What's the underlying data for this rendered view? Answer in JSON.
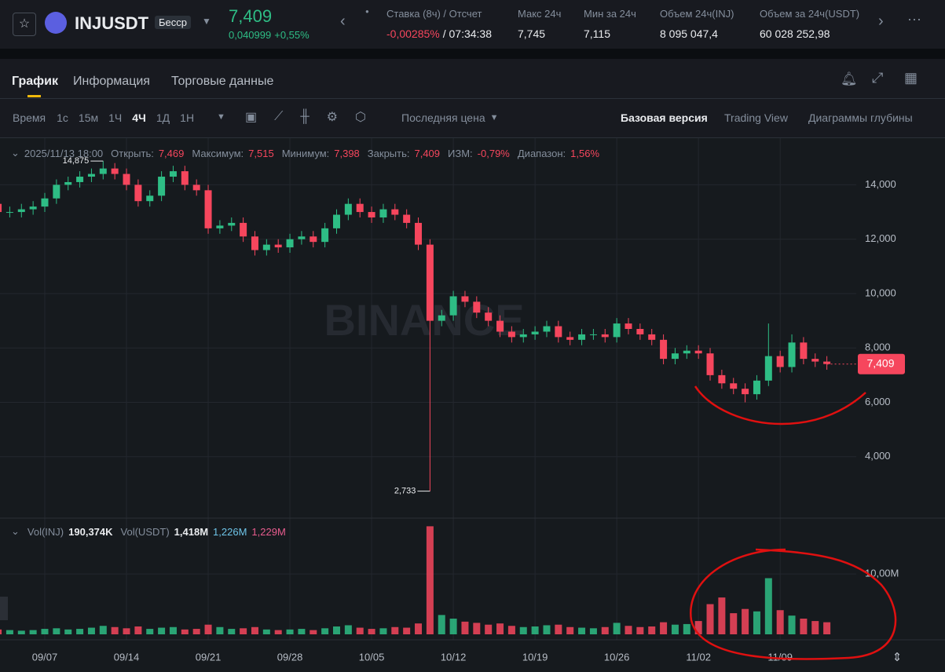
{
  "header": {
    "symbol": "INJUSDT",
    "contract": "Бесср",
    "price": "7,409",
    "change": "0,040999",
    "change_pct": "+0,55%",
    "stats": [
      {
        "label": "Ставка (8ч) / Отсчет",
        "value": "-0,00285%",
        "extra": "/ 07:34:38"
      },
      {
        "label": "Макс 24ч",
        "value": "7,745"
      },
      {
        "label": "Мин за 24ч",
        "value": "7,115"
      },
      {
        "label": "Объем 24ч(INJ)",
        "value": "8 095 047,4"
      },
      {
        "label": "Объем за 24ч(USDT)",
        "value": "60 028 252,98"
      }
    ]
  },
  "tabs": [
    "График",
    "Информация",
    "Торговые данные"
  ],
  "toolbar": {
    "intervals": [
      "Время",
      "1с",
      "15м",
      "1Ч",
      "4Ч",
      "1Д",
      "1Н"
    ],
    "price_source": "Последняя цена",
    "views": [
      "Базовая версия",
      "Trading View",
      "Диаграммы глубины"
    ]
  },
  "chart_data": [
    {
      "type": "candlestick",
      "watermark": "BINANCE",
      "legend": {
        "time": "2025/11/13 18:00",
        "items": [
          {
            "label": "Открыть:",
            "value": "7,469"
          },
          {
            "label": "Максимум:",
            "value": "7,515"
          },
          {
            "label": "Минимум:",
            "value": "7,398"
          },
          {
            "label": "Закрыть:",
            "value": "7,409"
          },
          {
            "label": "ИЗМ:",
            "value": "-0,79%"
          },
          {
            "label": "Диапазон:",
            "value": "1,56%"
          }
        ]
      },
      "categories": [
        null,
        null,
        null,
        null,
        "09/07",
        null,
        null,
        null,
        null,
        null,
        null,
        "09/14",
        null,
        null,
        null,
        null,
        null,
        null,
        "09/21",
        null,
        null,
        null,
        null,
        null,
        null,
        "09/28",
        null,
        null,
        null,
        null,
        null,
        null,
        "10/05",
        null,
        null,
        null,
        null,
        null,
        null,
        "10/12",
        null,
        null,
        null,
        null,
        null,
        null,
        "10/19",
        null,
        null,
        null,
        null,
        null,
        null,
        "10/26",
        null,
        null,
        null,
        null,
        null,
        null,
        "11/02",
        null,
        null,
        null,
        null,
        null,
        null,
        "11/09",
        null,
        null,
        null,
        null
      ],
      "open": [
        13.3,
        13.0,
        13.0,
        13.1,
        13.2,
        13.5,
        14.0,
        14.1,
        14.3,
        14.4,
        14.6,
        14.4,
        14.0,
        13.4,
        13.6,
        14.3,
        14.5,
        14.0,
        13.8,
        12.4,
        12.5,
        12.6,
        12.1,
        11.6,
        11.8,
        11.7,
        12.0,
        12.1,
        11.9,
        12.4,
        12.9,
        13.3,
        13.0,
        12.8,
        13.1,
        12.9,
        12.6,
        11.8,
        9.0,
        9.2,
        9.9,
        9.7,
        9.3,
        9.0,
        8.6,
        8.4,
        8.5,
        8.6,
        8.8,
        8.4,
        8.3,
        8.5,
        8.5,
        8.4,
        8.9,
        8.7,
        8.5,
        8.3,
        7.6,
        7.8,
        7.9,
        7.8,
        7.0,
        6.7,
        6.5,
        6.3,
        6.8,
        7.7,
        7.3,
        8.2,
        7.6,
        7.5
      ],
      "high": [
        13.5,
        13.2,
        13.3,
        13.4,
        13.7,
        14.2,
        14.3,
        14.5,
        14.6,
        14.875,
        14.8,
        14.6,
        14.2,
        13.8,
        14.5,
        14.7,
        14.7,
        14.2,
        14.0,
        12.7,
        12.8,
        12.8,
        12.3,
        12.0,
        12.0,
        12.2,
        12.3,
        12.3,
        12.6,
        13.1,
        13.5,
        13.5,
        13.2,
        13.3,
        13.3,
        13.1,
        12.8,
        12.0,
        9.4,
        10.1,
        10.1,
        9.9,
        9.5,
        9.2,
        8.8,
        8.7,
        8.8,
        9.0,
        9.0,
        8.6,
        8.7,
        8.7,
        8.7,
        9.1,
        9.1,
        8.9,
        8.7,
        8.5,
        8.0,
        8.1,
        8.1,
        8.0,
        7.2,
        6.9,
        6.7,
        7.0,
        8.9,
        7.9,
        8.5,
        8.4,
        7.8,
        7.7
      ],
      "low": [
        12.8,
        12.8,
        12.8,
        12.9,
        13.0,
        13.3,
        13.8,
        13.9,
        14.1,
        14.2,
        14.2,
        13.8,
        13.2,
        13.2,
        13.4,
        14.1,
        13.8,
        13.6,
        12.2,
        12.2,
        12.3,
        11.9,
        11.4,
        11.4,
        11.5,
        11.5,
        11.8,
        11.7,
        11.7,
        12.2,
        12.7,
        12.8,
        12.6,
        12.6,
        12.7,
        12.4,
        11.6,
        2.733,
        8.8,
        9.0,
        9.5,
        9.1,
        8.8,
        8.4,
        8.2,
        8.2,
        8.3,
        8.4,
        8.2,
        8.1,
        8.1,
        8.3,
        8.2,
        8.2,
        8.5,
        8.3,
        8.1,
        7.4,
        7.4,
        7.6,
        7.6,
        6.8,
        6.5,
        6.3,
        6.0,
        6.1,
        6.6,
        7.1,
        7.1,
        7.4,
        7.3,
        7.2
      ],
      "close": [
        13.0,
        13.0,
        13.1,
        13.2,
        13.5,
        14.0,
        14.1,
        14.3,
        14.4,
        14.6,
        14.4,
        14.0,
        13.4,
        13.6,
        14.3,
        14.5,
        14.0,
        13.8,
        12.4,
        12.5,
        12.6,
        12.1,
        11.6,
        11.8,
        11.7,
        12.0,
        12.1,
        11.9,
        12.4,
        12.9,
        13.3,
        13.0,
        12.8,
        13.1,
        12.9,
        12.6,
        11.8,
        9.0,
        9.2,
        9.9,
        9.7,
        9.3,
        9.0,
        8.6,
        8.4,
        8.5,
        8.6,
        8.8,
        8.4,
        8.3,
        8.5,
        8.5,
        8.4,
        8.9,
        8.7,
        8.5,
        8.3,
        7.6,
        7.8,
        7.9,
        7.8,
        7.0,
        6.7,
        6.5,
        6.3,
        6.8,
        7.7,
        7.3,
        8.2,
        7.6,
        7.5,
        7.409
      ],
      "annotations": [
        {
          "value": 14.875,
          "label": "14,875"
        },
        {
          "value": 2.733,
          "label": "2,733"
        }
      ],
      "last_price": {
        "value": 7.409,
        "label": "7,409"
      },
      "up_color": "#2ebd85",
      "down_color": "#f6465d",
      "ylim": [
        1.8,
        15.6
      ],
      "yticks": [
        {
          "value": 4,
          "label": "4,000"
        },
        {
          "value": 6,
          "label": "6,000"
        },
        {
          "value": 8,
          "label": "8,000"
        },
        {
          "value": 10,
          "label": "10,000"
        },
        {
          "value": 12,
          "label": "12,000"
        },
        {
          "value": 14,
          "label": "14,000"
        }
      ],
      "grid": true
    },
    {
      "type": "bar",
      "legend": [
        {
          "label": "Vol(INJ)",
          "value": "190,374K"
        },
        {
          "label": "Vol(USDT)",
          "value": "1,418M"
        },
        {
          "value": "1,226M",
          "color": "#6ec4e8"
        },
        {
          "value": "1,229M",
          "color": "#e85c8e"
        }
      ],
      "values": [
        0.8,
        0.7,
        0.6,
        0.7,
        0.9,
        1.0,
        0.8,
        0.9,
        1.1,
        1.4,
        1.2,
        1.0,
        1.3,
        0.9,
        1.1,
        1.2,
        0.8,
        0.9,
        1.6,
        1.2,
        0.9,
        1.0,
        1.2,
        0.8,
        0.7,
        0.8,
        0.9,
        0.7,
        1.0,
        1.3,
        1.5,
        1.1,
        0.9,
        1.0,
        1.2,
        1.1,
        1.8,
        17.9,
        3.2,
        2.6,
        2.1,
        1.9,
        1.6,
        1.8,
        1.4,
        1.2,
        1.3,
        1.5,
        1.6,
        1.2,
        1.1,
        1.0,
        1.2,
        1.9,
        1.4,
        1.2,
        1.3,
        2.0,
        1.6,
        1.7,
        2.2,
        5.0,
        6.1,
        3.5,
        4.2,
        3.8,
        9.3,
        4.0,
        3.1,
        2.6,
        2.2,
        2.0
      ],
      "ylim": [
        0,
        18.6
      ],
      "yticks": [
        {
          "value": 10,
          "label": "10,00M"
        }
      ]
    }
  ]
}
